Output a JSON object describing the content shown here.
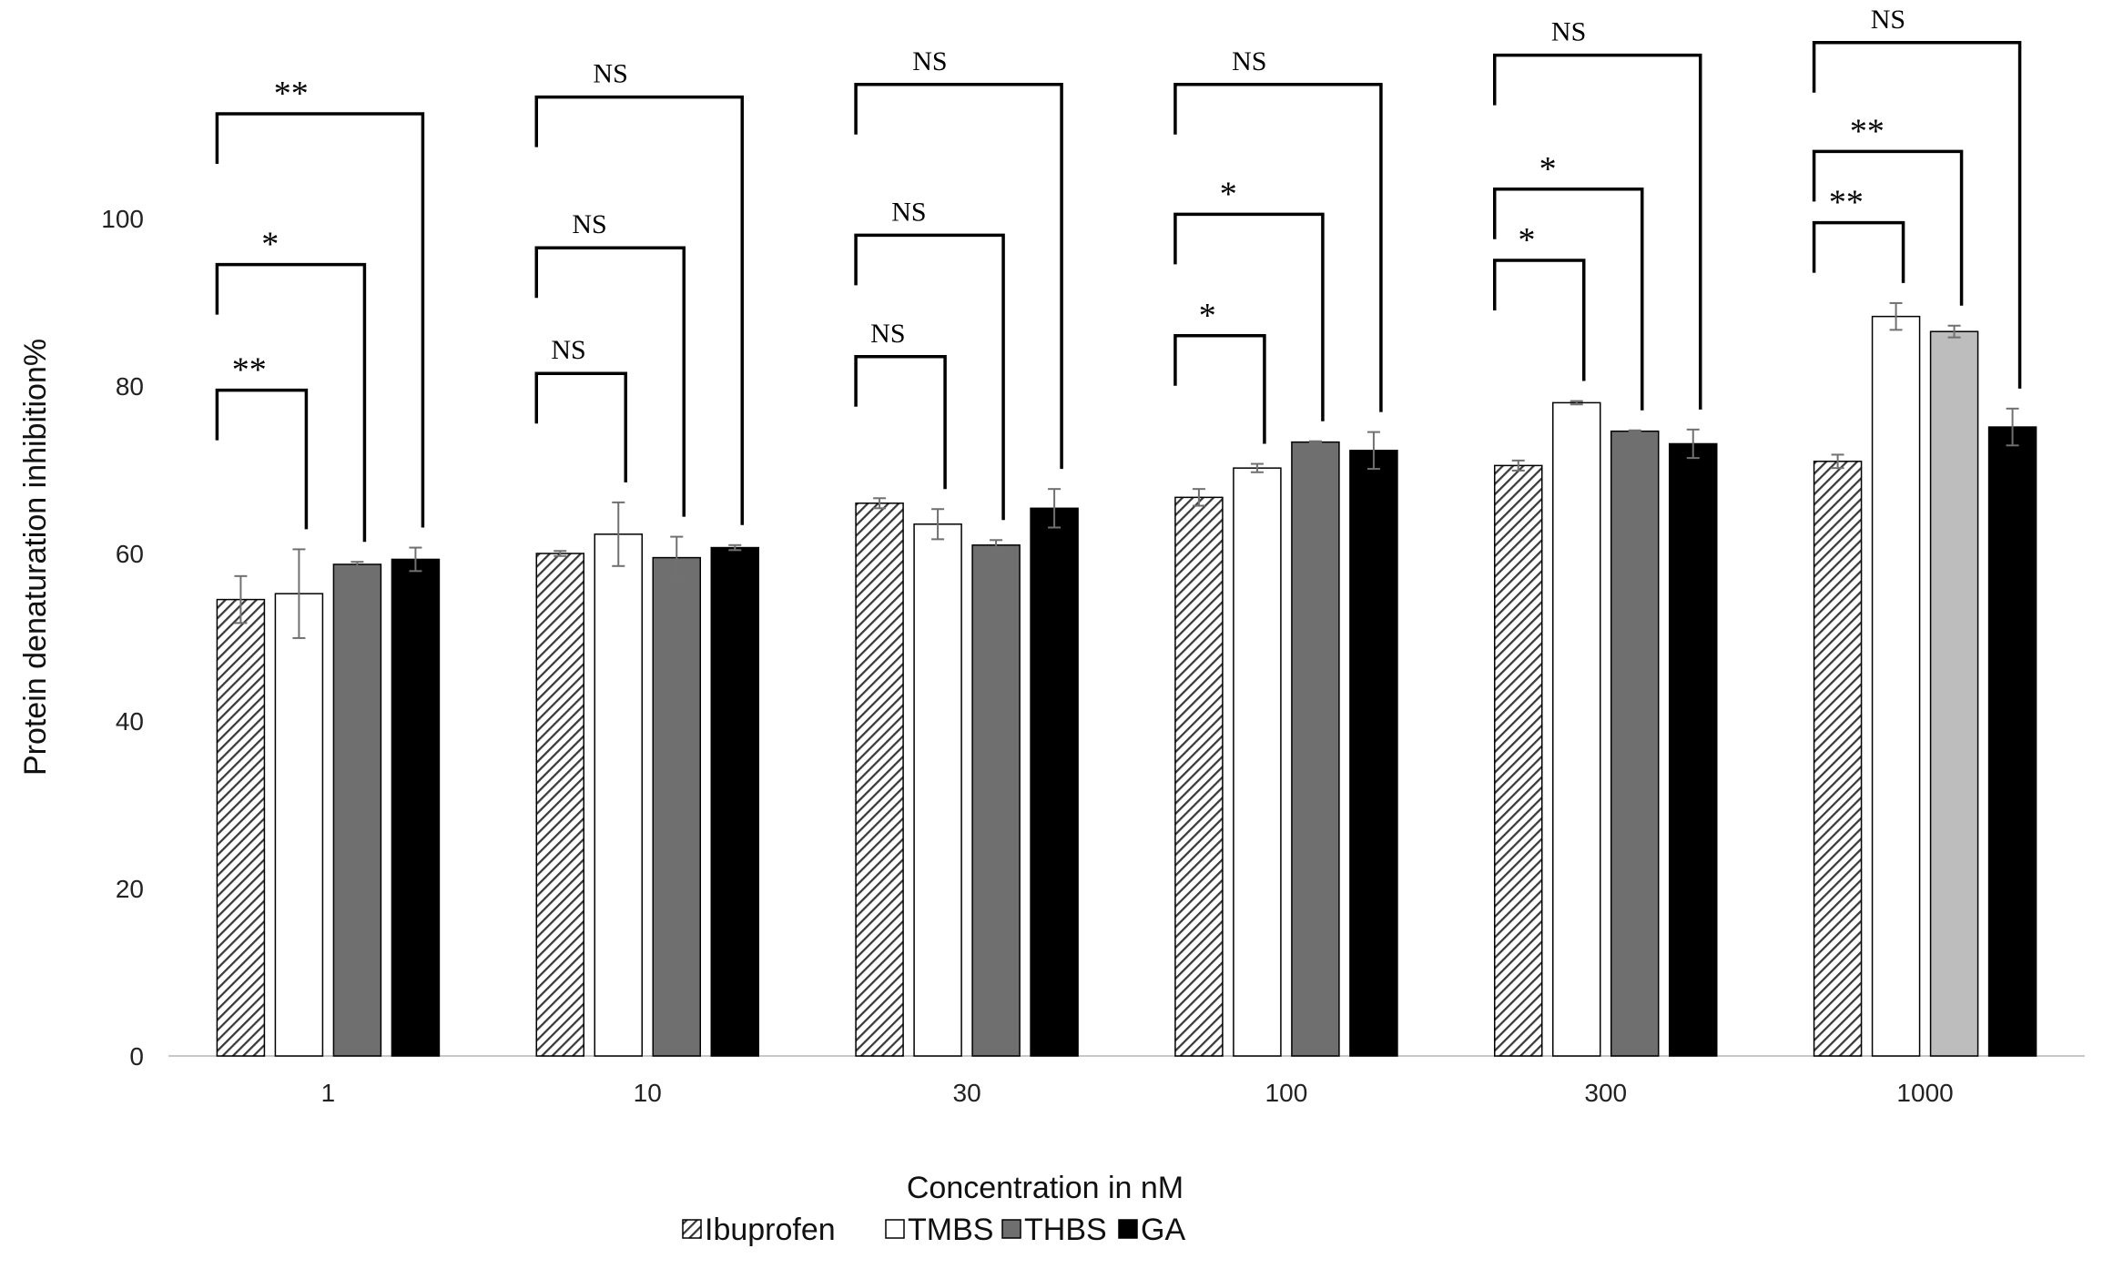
{
  "chart_data": {
    "type": "bar",
    "xlabel": "Concentration in nM",
    "ylabel": "Protein denaturation inhibition%",
    "ylim": [
      0,
      100
    ],
    "yticks": [
      0,
      20,
      40,
      60,
      80,
      100
    ],
    "grid": false,
    "legend_position": "bottom",
    "categories": [
      "1",
      "10",
      "30",
      "100",
      "300",
      "1000"
    ],
    "series": [
      {
        "name": "Ibuprofen",
        "style": "hatch",
        "color": "#555555",
        "values": [
          54.5,
          60.0,
          66.0,
          66.7,
          70.5,
          71.0
        ],
        "errors": [
          2.8,
          0.3,
          0.6,
          1.0,
          0.6,
          0.8
        ]
      },
      {
        "name": "TMBS",
        "style": "white",
        "color": "#ffffff",
        "values": [
          55.2,
          62.3,
          63.5,
          70.2,
          78.0,
          88.3
        ],
        "errors": [
          5.3,
          3.8,
          1.8,
          0.5,
          0.2,
          1.6
        ]
      },
      {
        "name": "THBS",
        "style": "gray",
        "color": "#6f6f6f",
        "color_last": "#bdbdbd",
        "values": [
          58.7,
          59.5,
          61.0,
          73.3,
          74.6,
          86.5
        ],
        "errors": [
          0.3,
          2.5,
          0.6,
          0.1,
          0.1,
          0.7
        ]
      },
      {
        "name": "GA",
        "style": "black",
        "color": "#000000",
        "values": [
          59.3,
          60.7,
          65.4,
          72.3,
          73.1,
          75.1
        ],
        "errors": [
          1.4,
          0.3,
          2.3,
          2.2,
          1.7,
          2.2
        ]
      }
    ],
    "significance": [
      {
        "category": "1",
        "comparisons": [
          {
            "vs": "TMBS",
            "label": "**",
            "top": 79.5
          },
          {
            "vs": "THBS",
            "label": "*",
            "top": 94.5
          },
          {
            "vs": "GA",
            "label": "**",
            "top": 112.5
          }
        ]
      },
      {
        "category": "10",
        "comparisons": [
          {
            "vs": "TMBS",
            "label": "NS",
            "top": 81.5
          },
          {
            "vs": "THBS",
            "label": "NS",
            "top": 96.5
          },
          {
            "vs": "GA",
            "label": "NS",
            "top": 114.5
          }
        ]
      },
      {
        "category": "30",
        "comparisons": [
          {
            "vs": "TMBS",
            "label": "NS",
            "top": 83.5
          },
          {
            "vs": "THBS",
            "label": "NS",
            "top": 98.0
          },
          {
            "vs": "GA",
            "label": "NS",
            "top": 116.0
          }
        ]
      },
      {
        "category": "100",
        "comparisons": [
          {
            "vs": "TMBS",
            "label": "*",
            "top": 86.0
          },
          {
            "vs": "THBS",
            "label": "*",
            "top": 100.5
          },
          {
            "vs": "GA",
            "label": "NS",
            "top": 116.0
          }
        ]
      },
      {
        "category": "300",
        "comparisons": [
          {
            "vs": "TMBS",
            "label": "*",
            "top": 95.0
          },
          {
            "vs": "THBS",
            "label": "*",
            "top": 103.5
          },
          {
            "vs": "GA",
            "label": "NS",
            "top": 119.5
          }
        ]
      },
      {
        "category": "1000",
        "comparisons": [
          {
            "vs": "TMBS",
            "label": "**",
            "top": 99.5
          },
          {
            "vs": "THBS",
            "label": "**",
            "top": 108.0
          },
          {
            "vs": "GA",
            "label": "NS",
            "top": 121.0
          }
        ]
      }
    ]
  }
}
